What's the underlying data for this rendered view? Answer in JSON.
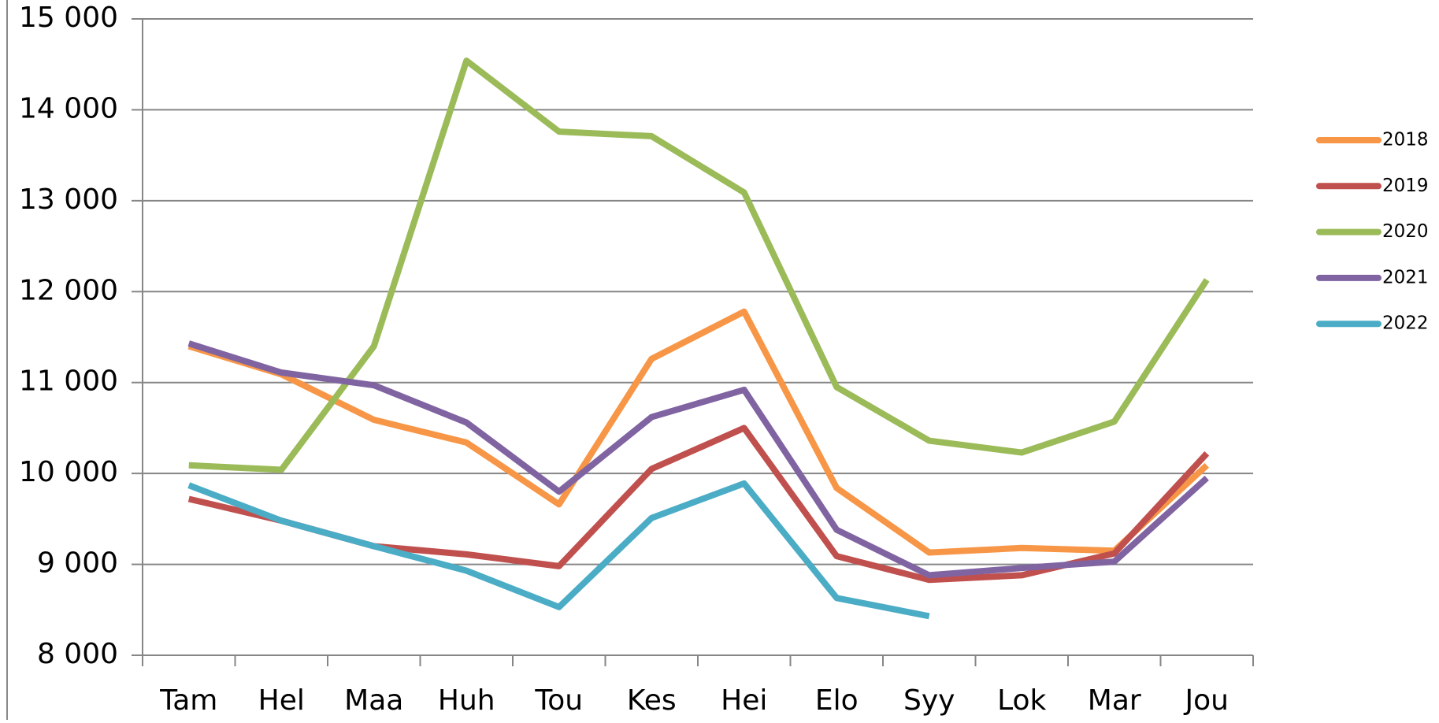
{
  "chart_data": {
    "type": "line",
    "categories": [
      "Tam",
      "Hel",
      "Maa",
      "Huh",
      "Tou",
      "Kes",
      "Hei",
      "Elo",
      "Syy",
      "Lok",
      "Mar",
      "Jou"
    ],
    "series": [
      {
        "name": "2018",
        "color": "#f79646",
        "values": [
          11400,
          11090,
          10590,
          10340,
          9660,
          11260,
          11780,
          9840,
          9130,
          9180,
          9150,
          10090
        ]
      },
      {
        "name": "2019",
        "color": "#c0504d",
        "values": [
          9720,
          9480,
          9200,
          9110,
          8980,
          10050,
          10500,
          9090,
          8830,
          8880,
          9120,
          10220
        ]
      },
      {
        "name": "2020",
        "color": "#9bbb59",
        "values": [
          10090,
          10040,
          11400,
          14540,
          13760,
          13710,
          13090,
          10950,
          10360,
          10230,
          10570,
          12130
        ]
      },
      {
        "name": "2021",
        "color": "#8064a2",
        "values": [
          11430,
          11110,
          10970,
          10560,
          9800,
          10620,
          10920,
          9380,
          8880,
          8960,
          9030,
          9950
        ]
      },
      {
        "name": "2022",
        "color": "#4bacc6",
        "values": [
          9870,
          9480,
          9200,
          8930,
          8530,
          9510,
          9890,
          8630,
          8430,
          null,
          null,
          null
        ]
      }
    ],
    "ylim": [
      8000,
      15000
    ],
    "yticks": [
      {
        "value": 8000,
        "label": "8 000"
      },
      {
        "value": 9000,
        "label": "9 000"
      },
      {
        "value": 10000,
        "label": "10 000"
      },
      {
        "value": 11000,
        "label": "11 000"
      },
      {
        "value": 12000,
        "label": "12 000"
      },
      {
        "value": 13000,
        "label": "13 000"
      },
      {
        "value": 14000,
        "label": "14 000"
      },
      {
        "value": 15000,
        "label": "15 000"
      }
    ],
    "grid": true,
    "legend": "right"
  }
}
